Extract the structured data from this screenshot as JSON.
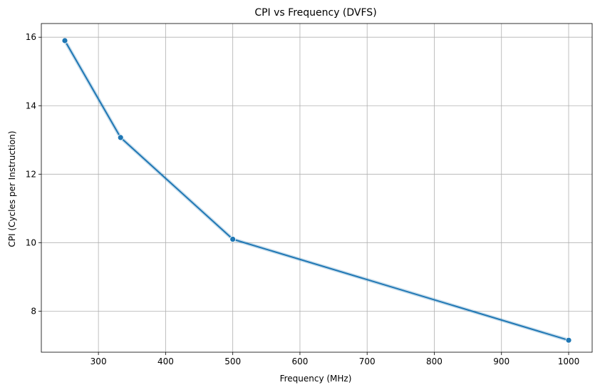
{
  "chart_data": {
    "type": "line",
    "title": "CPI vs Frequency (DVFS)",
    "xlabel": "Frequency (MHz)",
    "ylabel": "CPI (Cycles per Instruction)",
    "xlim": [
      215,
      1035
    ],
    "ylim": [
      6.8,
      16.4
    ],
    "xticks": [
      300,
      400,
      500,
      600,
      700,
      800,
      900,
      1000
    ],
    "yticks": [
      8,
      10,
      12,
      14,
      16
    ],
    "grid": true,
    "legend": "none",
    "series": [
      {
        "x": [
          250,
          333,
          500,
          1000
        ],
        "y": [
          15.9,
          13.07,
          10.1,
          7.15
        ],
        "color": "#1f77b4",
        "marker": "circle"
      }
    ]
  }
}
